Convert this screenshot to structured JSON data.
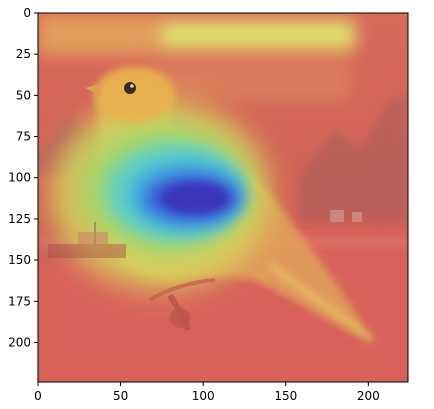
{
  "image": {
    "kind": "saliency-heatmap-overlay",
    "subject": "bird",
    "colormap": "jet",
    "x_axis": {
      "ticks": [
        0,
        50,
        100,
        150,
        200
      ],
      "range": [
        0,
        224
      ]
    },
    "y_axis": {
      "ticks": [
        0,
        25,
        50,
        75,
        100,
        125,
        150,
        175,
        200
      ],
      "range": [
        0,
        224
      ]
    },
    "colors": {
      "frame": "#000000",
      "background": "#ffffff",
      "heat_low": "#d95454",
      "heat_mid": "#d9e36a",
      "heat_high": "#3b3fcf"
    }
  }
}
